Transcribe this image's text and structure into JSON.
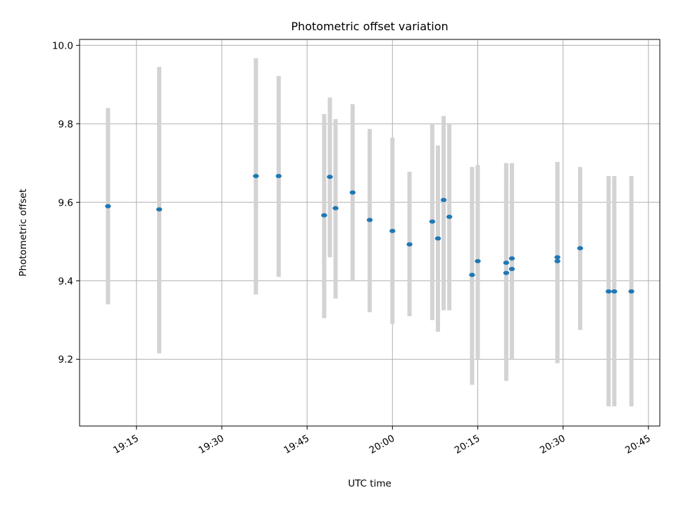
{
  "chart_data": {
    "type": "scatter",
    "title": "Photometric offset variation",
    "xlabel": "UTC time",
    "ylabel": "Photometric offset",
    "grid": true,
    "legend": "none",
    "xlim": [
      "19:05",
      "20:47"
    ],
    "ylim": [
      9.03,
      10.015
    ],
    "x_ticks": [
      "19:15",
      "19:30",
      "19:45",
      "20:00",
      "20:15",
      "20:30",
      "20:45"
    ],
    "y_ticks": [
      9.2,
      9.4,
      9.6,
      9.8,
      10.0
    ],
    "y_tick_labels": [
      "9.2",
      "9.4",
      "9.6",
      "9.8",
      "10.0"
    ],
    "colors": {
      "points": "#1f77b4",
      "error_bars": "#d3d3d3",
      "grid": "#b0b0b0"
    },
    "series": [
      {
        "x": [
          "19:10",
          "19:19",
          "19:36",
          "19:40",
          "19:48",
          "19:49",
          "19:50",
          "19:53",
          "19:56",
          "20:00",
          "20:03",
          "20:07",
          "20:08",
          "20:09",
          "20:10",
          "20:14",
          "20:15",
          "20:20",
          "20:20",
          "20:21",
          "20:21",
          "20:29",
          "20:29",
          "20:33",
          "20:38",
          "20:39",
          "20:42"
        ],
        "y": [
          9.59,
          9.582,
          9.667,
          9.667,
          9.567,
          9.665,
          9.585,
          9.625,
          9.555,
          9.527,
          9.493,
          9.551,
          9.508,
          9.606,
          9.563,
          9.415,
          9.45,
          9.446,
          9.42,
          9.457,
          9.43,
          9.45,
          9.46,
          9.483,
          9.373,
          9.373,
          9.373
        ],
        "y_low": [
          9.34,
          9.215,
          9.365,
          9.41,
          9.305,
          9.46,
          9.355,
          9.4,
          9.32,
          9.29,
          9.31,
          9.3,
          9.27,
          9.325,
          9.325,
          9.135,
          9.2,
          9.195,
          9.145,
          9.2,
          9.2,
          9.19,
          9.22,
          9.275,
          9.08,
          9.08,
          9.08
        ],
        "y_high": [
          9.84,
          9.945,
          9.967,
          9.922,
          9.825,
          9.867,
          9.812,
          9.85,
          9.787,
          9.765,
          9.678,
          9.8,
          9.745,
          9.82,
          9.8,
          9.69,
          9.695,
          9.697,
          9.7,
          9.7,
          9.66,
          9.703,
          9.7,
          9.69,
          9.667,
          9.667,
          9.667
        ]
      }
    ]
  }
}
